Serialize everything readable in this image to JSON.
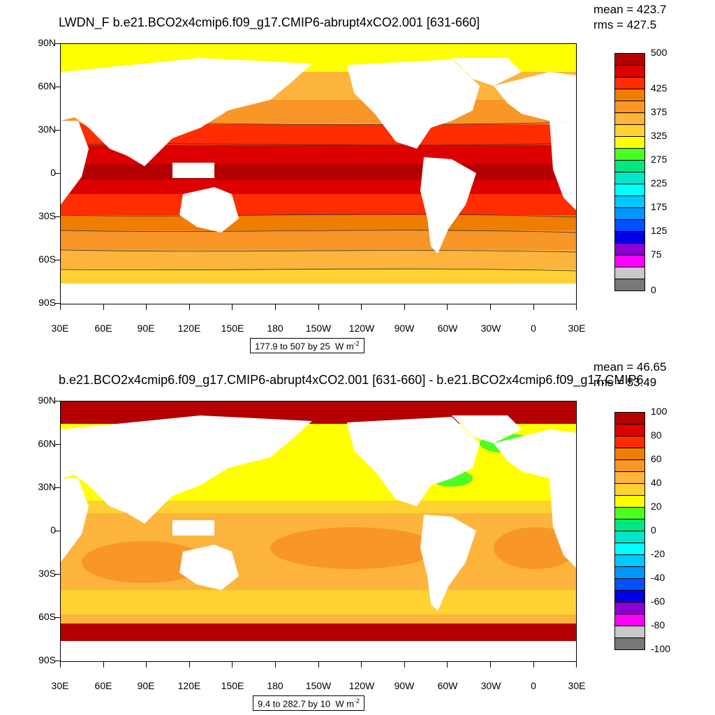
{
  "panels": [
    {
      "title": "LWDN_F b.e21.BCO2x4cmip6.f09_g17.CMIP6-abrupt4xCO2.001 [631-660]",
      "mean": "mean = 423.7",
      "rms": "rms = 427.5",
      "info": "177.9 to 507 by 25",
      "units": "W m",
      "units_exp": "-2",
      "colorbar_colors": [
        "#b40000",
        "#dc0000",
        "#ff2d00",
        "#ef7d00",
        "#f99628",
        "#fdb43c",
        "#fdd232",
        "#ffff00",
        "#4cff22",
        "#00e680",
        "#00e6c8",
        "#00ffff",
        "#00c8ff",
        "#0096ff",
        "#0050ff",
        "#0000e6",
        "#8c00d2",
        "#ff00ff",
        "#c8c8c8",
        "#787878"
      ],
      "colorbar_labels": [
        {
          "text": "500",
          "at": 0
        },
        {
          "text": "425",
          "at": 3
        },
        {
          "text": "375",
          "at": 5
        },
        {
          "text": "325",
          "at": 7
        },
        {
          "text": "275",
          "at": 9
        },
        {
          "text": "225",
          "at": 11
        },
        {
          "text": "175",
          "at": 13
        },
        {
          "text": "125",
          "at": 15
        },
        {
          "text": "75",
          "at": 17
        },
        {
          "text": "0",
          "at": 20
        }
      ]
    },
    {
      "title": "b.e21.BCO2x4cmip6.f09_g17.CMIP6-abrupt4xCO2.001 [631-660] - b.e21.BCO2x4cmip6.f09_g17.CMIP6",
      "mean": "mean = 46.65",
      "rms": "rms = 53.49",
      "info": "9.4 to 282.7 by 10",
      "units": "W m",
      "units_exp": "-2",
      "colorbar_colors": [
        "#b40000",
        "#dc0000",
        "#ff2d00",
        "#ef7d00",
        "#f99628",
        "#fdb43c",
        "#fdd232",
        "#ffff00",
        "#4cff22",
        "#00e680",
        "#00e6c8",
        "#00ffff",
        "#00c8ff",
        "#0096ff",
        "#0050ff",
        "#0000e6",
        "#8c00d2",
        "#ff00ff",
        "#c8c8c8",
        "#787878"
      ],
      "colorbar_labels": [
        {
          "text": "100",
          "at": 0
        },
        {
          "text": "80",
          "at": 2
        },
        {
          "text": "60",
          "at": 4
        },
        {
          "text": "40",
          "at": 6
        },
        {
          "text": "20",
          "at": 8
        },
        {
          "text": "0",
          "at": 10
        },
        {
          "text": "-20",
          "at": 12
        },
        {
          "text": "-40",
          "at": 14
        },
        {
          "text": "-60",
          "at": 16
        },
        {
          "text": "-80",
          "at": 18
        },
        {
          "text": "-100",
          "at": 20
        }
      ]
    }
  ],
  "lat_labels": [
    "90N",
    "60N",
    "30N",
    "0",
    "30S",
    "60S",
    "90S"
  ],
  "lon_labels": [
    "30E",
    "60E",
    "90E",
    "120E",
    "150E",
    "180",
    "150W",
    "120W",
    "90W",
    "60W",
    "30W",
    "0",
    "30E"
  ]
}
